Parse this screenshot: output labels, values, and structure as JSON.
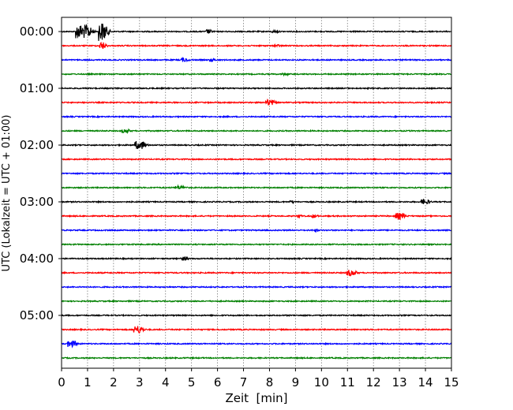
{
  "chart_data": {
    "type": "line",
    "title": "",
    "xlabel": "Zeit  [min]",
    "ylabel": "UTC (Lokalzeit = UTC + 01:00)",
    "xlim": [
      0,
      15
    ],
    "xticks": [
      "0",
      "1",
      "2",
      "3",
      "4",
      "5",
      "6",
      "7",
      "8",
      "9",
      "10",
      "11",
      "12",
      "13",
      "14",
      "15"
    ],
    "yticks": [
      {
        "label": "00:00",
        "row": 0
      },
      {
        "label": "01:00",
        "row": 4
      },
      {
        "label": "02:00",
        "row": 8
      },
      {
        "label": "03:00",
        "row": 12
      },
      {
        "label": "04:00",
        "row": 16
      },
      {
        "label": "05:00",
        "row": 20
      }
    ],
    "grid": "vertical dotted",
    "trace_count": 24,
    "minutes_per_trace": 15,
    "colors": [
      "#000000",
      "#ff0000",
      "#0000ff",
      "#008000"
    ],
    "events": [
      {
        "row": 0,
        "t": 0.55,
        "amp": 9,
        "dur": 0.5
      },
      {
        "row": 0,
        "t": 1.45,
        "amp": 12,
        "dur": 0.2
      },
      {
        "row": 0,
        "t": 5.6,
        "amp": 3,
        "dur": 0.1
      },
      {
        "row": 0,
        "t": 8.1,
        "amp": 1.5,
        "dur": 0.2
      },
      {
        "row": 1,
        "t": 1.5,
        "amp": 5,
        "dur": 0.1
      },
      {
        "row": 1,
        "t": 8.2,
        "amp": 1.5,
        "dur": 0.2
      },
      {
        "row": 2,
        "t": 4.6,
        "amp": 2.5,
        "dur": 0.2
      },
      {
        "row": 2,
        "t": 5.7,
        "amp": 2,
        "dur": 0.15
      },
      {
        "row": 3,
        "t": 8.5,
        "amp": 1.5,
        "dur": 0.2
      },
      {
        "row": 5,
        "t": 7.85,
        "amp": 4,
        "dur": 0.25
      },
      {
        "row": 7,
        "t": 2.35,
        "amp": 2.5,
        "dur": 0.2
      },
      {
        "row": 8,
        "t": 2.85,
        "amp": 5,
        "dur": 0.3
      },
      {
        "row": 11,
        "t": 4.4,
        "amp": 2.5,
        "dur": 0.3
      },
      {
        "row": 12,
        "t": 8.8,
        "amp": 1.5,
        "dur": 0.15
      },
      {
        "row": 12,
        "t": 13.85,
        "amp": 3,
        "dur": 0.25
      },
      {
        "row": 13,
        "t": 9.1,
        "amp": 2.5,
        "dur": 0.05
      },
      {
        "row": 13,
        "t": 9.65,
        "amp": 2,
        "dur": 0.15
      },
      {
        "row": 13,
        "t": 12.85,
        "amp": 4,
        "dur": 0.3
      },
      {
        "row": 14,
        "t": 9.7,
        "amp": 1.5,
        "dur": 0.15
      },
      {
        "row": 16,
        "t": 4.6,
        "amp": 2.5,
        "dur": 0.2
      },
      {
        "row": 17,
        "t": 10.95,
        "amp": 4,
        "dur": 0.3
      },
      {
        "row": 21,
        "t": 2.8,
        "amp": 5,
        "dur": 0.25
      },
      {
        "row": 22,
        "t": 0.25,
        "amp": 4,
        "dur": 0.25
      }
    ]
  }
}
